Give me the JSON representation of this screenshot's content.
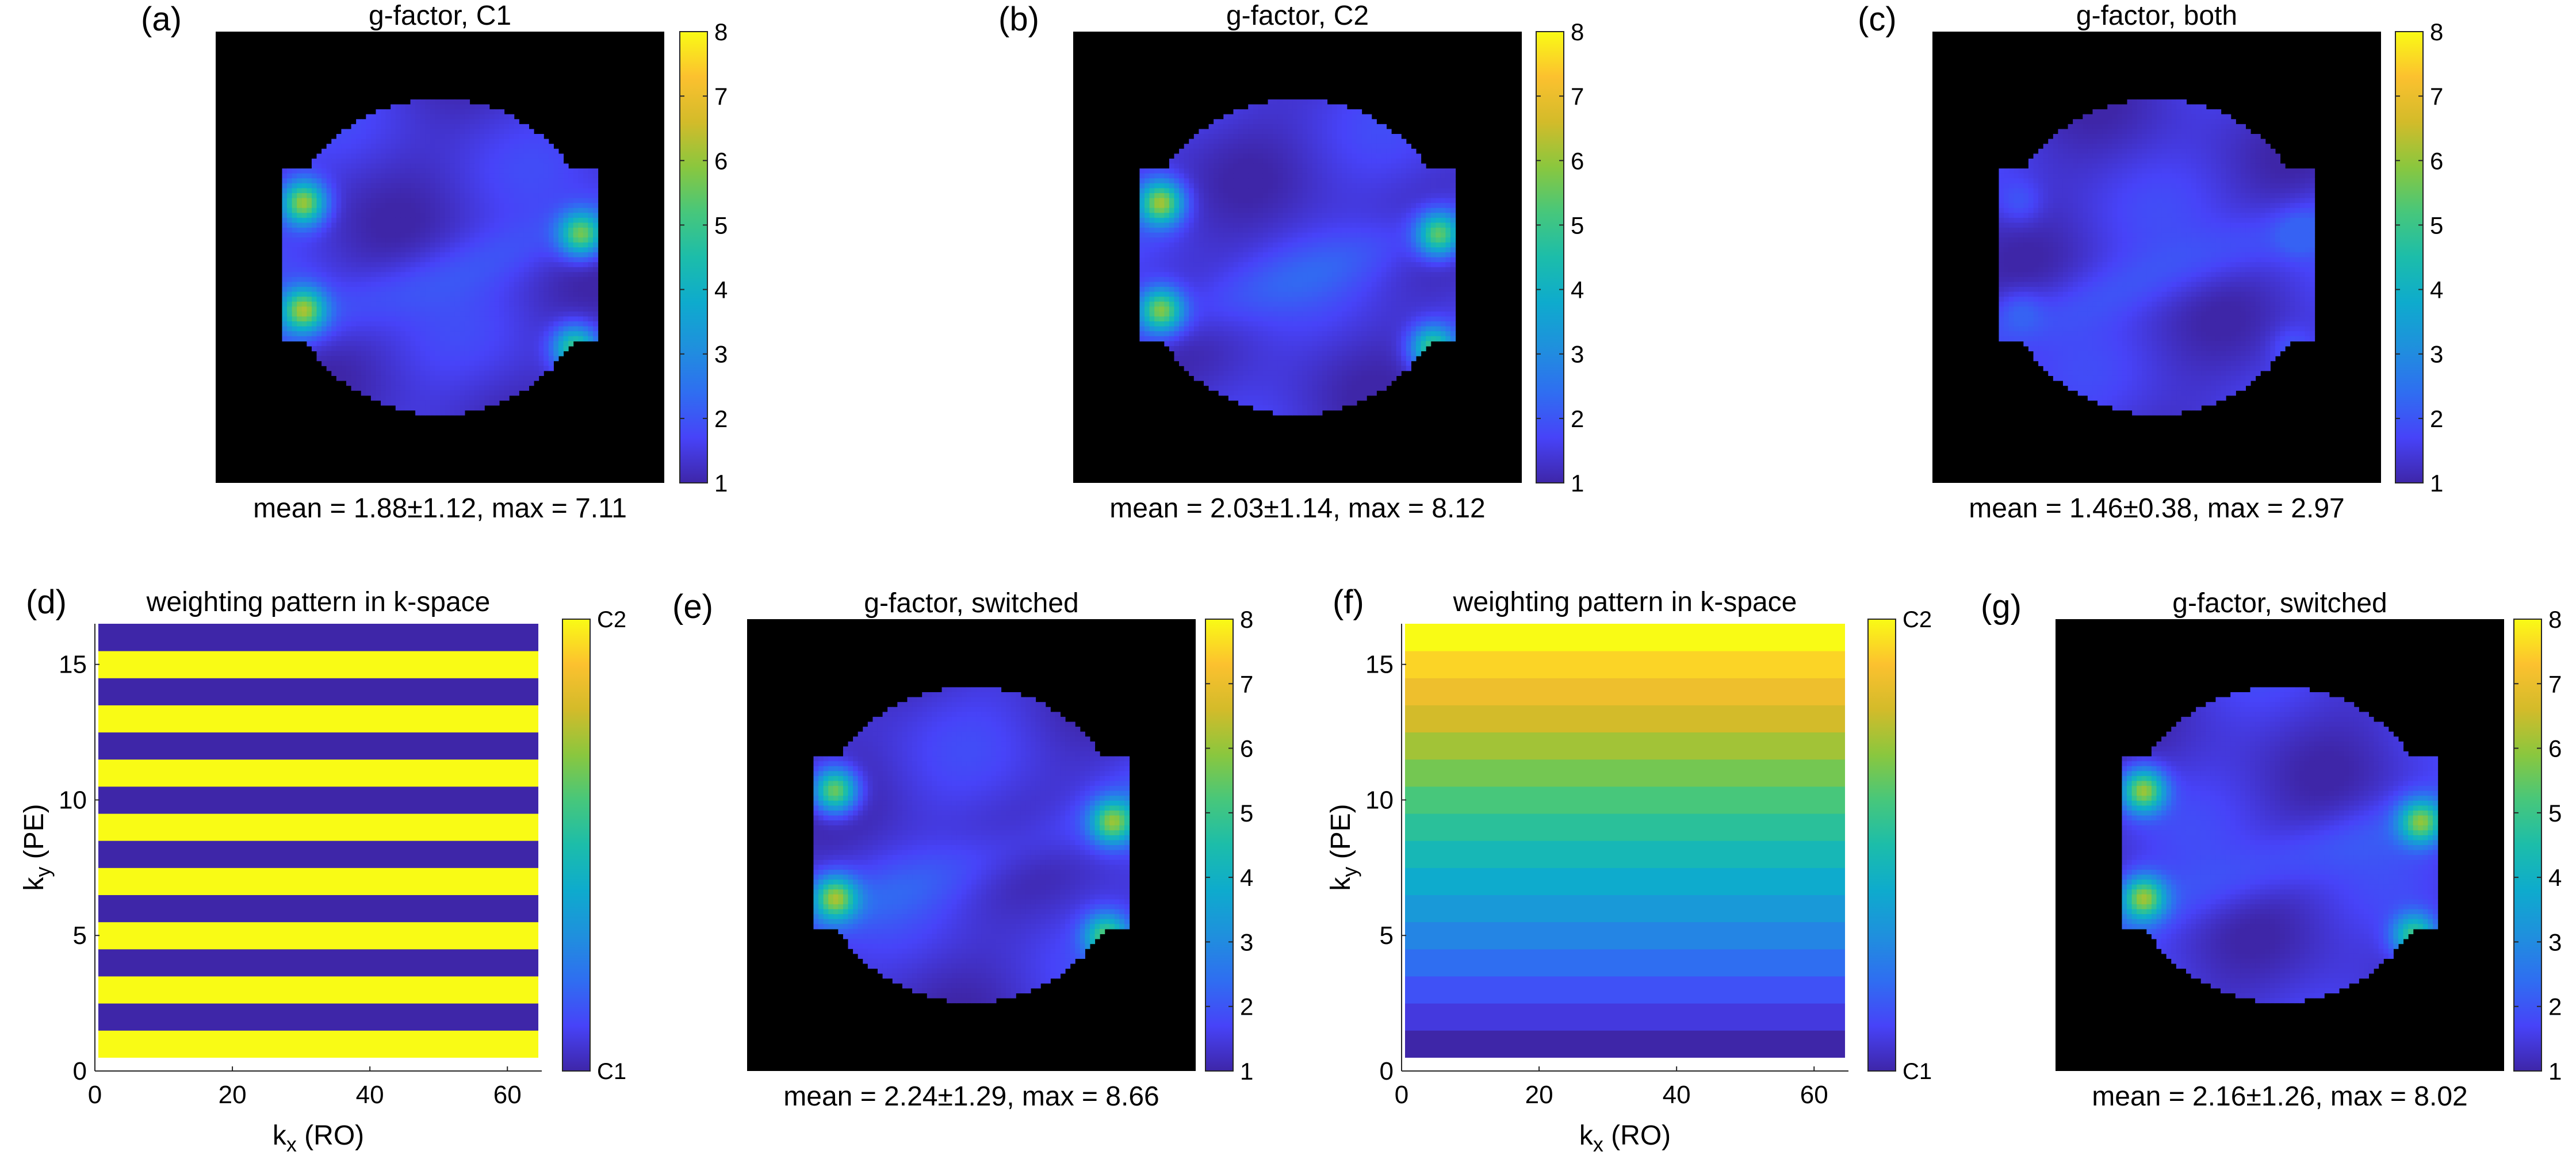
{
  "colors": {
    "parula": [
      "#3e26a8",
      "#4743f8",
      "#2f6ef1",
      "#1f90dd",
      "#0eabcd",
      "#1cbdaa",
      "#47c77b",
      "#8ac73e",
      "#d3bb2a",
      "#fcc12f",
      "#f9fb15"
    ],
    "background": "#000000"
  },
  "chart_data": [
    {
      "type": "heatmap",
      "panel_label": "(a)",
      "title": "g-factor, C1",
      "caption": "mean = 1.88±1.12, max = 7.11",
      "colorbar": {
        "range": [
          1,
          8
        ],
        "ticks": [
          "1",
          "2",
          "3",
          "4",
          "5",
          "6",
          "7",
          "8"
        ]
      },
      "stats": {
        "mean": 1.88,
        "std": 1.12,
        "max": 7.11
      }
    },
    {
      "type": "heatmap",
      "panel_label": "(b)",
      "title": "g-factor, C2",
      "caption": "mean = 2.03±1.14, max = 8.12",
      "colorbar": {
        "range": [
          1,
          8
        ],
        "ticks": [
          "1",
          "2",
          "3",
          "4",
          "5",
          "6",
          "7",
          "8"
        ]
      },
      "stats": {
        "mean": 2.03,
        "std": 1.14,
        "max": 8.12
      }
    },
    {
      "type": "heatmap",
      "panel_label": "(c)",
      "title": "g-factor, both",
      "caption": "mean = 1.46±0.38, max = 2.97",
      "colorbar": {
        "range": [
          1,
          8
        ],
        "ticks": [
          "1",
          "2",
          "3",
          "4",
          "5",
          "6",
          "7",
          "8"
        ]
      },
      "stats": {
        "mean": 1.46,
        "std": 0.38,
        "max": 2.97
      }
    },
    {
      "type": "heatmap",
      "panel_label": "(d)",
      "title": "weighting pattern in k-space",
      "xlabel": "k",
      "xlabel_sub": "x",
      "xlabel_rest": " (RO)",
      "ylabel": "k",
      "ylabel_sub": "y",
      "ylabel_rest": " (PE)",
      "xlim": [
        0,
        65
      ],
      "ylim": [
        0,
        16.5
      ],
      "xticks": [
        0,
        20,
        40,
        60
      ],
      "yticks": [
        0,
        5,
        10,
        15
      ],
      "rows": 16,
      "row_weights": [
        1,
        0,
        1,
        0,
        1,
        0,
        1,
        0,
        1,
        0,
        1,
        0,
        1,
        0,
        1,
        0
      ],
      "colorbar": {
        "ticks": [
          "C1",
          "C2"
        ]
      }
    },
    {
      "type": "heatmap",
      "panel_label": "(e)",
      "title": "g-factor, switched",
      "caption": "mean = 2.24±1.29, max = 8.66",
      "colorbar": {
        "range": [
          1,
          8
        ],
        "ticks": [
          "1",
          "2",
          "3",
          "4",
          "5",
          "6",
          "7",
          "8"
        ]
      },
      "stats": {
        "mean": 2.24,
        "std": 1.29,
        "max": 8.66
      }
    },
    {
      "type": "heatmap",
      "panel_label": "(f)",
      "title": "weighting pattern in k-space",
      "xlabel": "k",
      "xlabel_sub": "x",
      "xlabel_rest": " (RO)",
      "ylabel": "k",
      "ylabel_sub": "y",
      "ylabel_rest": " (PE)",
      "xlim": [
        0,
        65
      ],
      "ylim": [
        0,
        16.5
      ],
      "xticks": [
        0,
        20,
        40,
        60
      ],
      "yticks": [
        0,
        5,
        10,
        15
      ],
      "rows": 16,
      "row_weights": [
        0,
        0.067,
        0.133,
        0.2,
        0.267,
        0.333,
        0.4,
        0.467,
        0.533,
        0.6,
        0.667,
        0.733,
        0.8,
        0.867,
        0.933,
        1
      ],
      "colorbar": {
        "ticks": [
          "C1",
          "C2"
        ]
      }
    },
    {
      "type": "heatmap",
      "panel_label": "(g)",
      "title": "g-factor, switched",
      "caption": "mean = 2.16±1.26, max = 8.02",
      "colorbar": {
        "range": [
          1,
          8
        ],
        "ticks": [
          "1",
          "2",
          "3",
          "4",
          "5",
          "6",
          "7",
          "8"
        ]
      },
      "stats": {
        "mean": 2.16,
        "std": 1.26,
        "max": 8.02
      }
    }
  ]
}
